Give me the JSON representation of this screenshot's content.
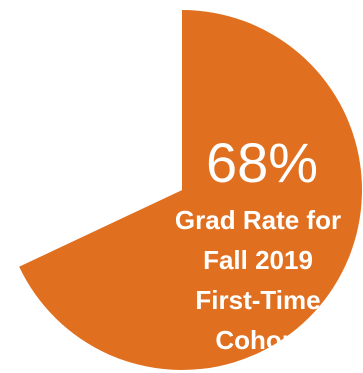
{
  "chart_data": {
    "type": "pie",
    "slices": [
      {
        "value": 68,
        "color": "#E07020"
      },
      {
        "value": 32,
        "color": "#FFFFFF"
      }
    ],
    "value_label": "68%",
    "caption_lines": [
      "Grad Rate for",
      "Fall 2019",
      "First-Time",
      "Cohort"
    ]
  }
}
